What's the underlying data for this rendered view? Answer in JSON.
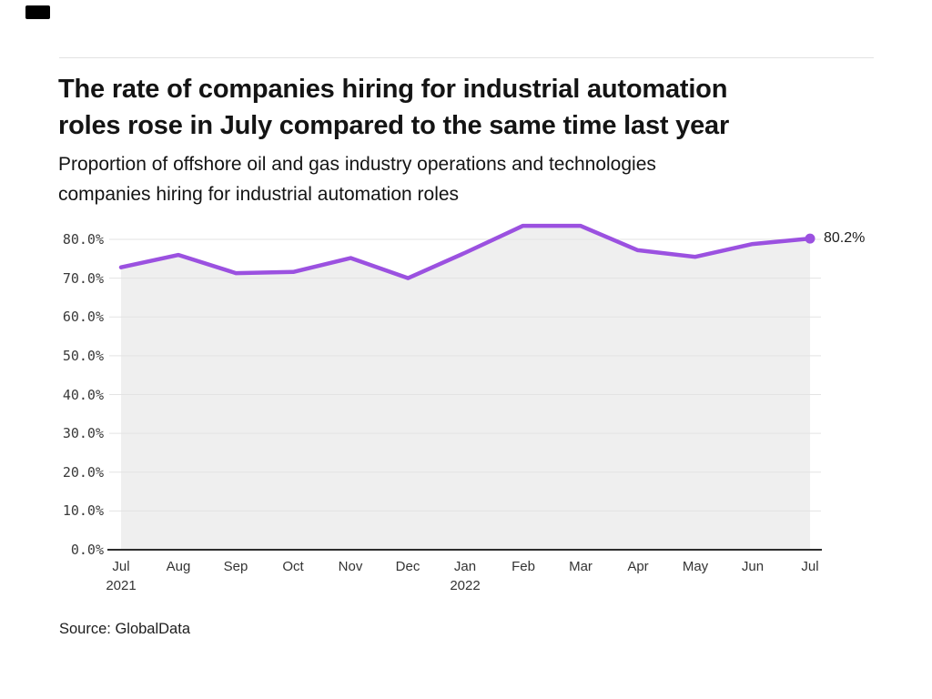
{
  "header": {
    "title_line1": "The rate of companies hiring for industrial automation",
    "title_line2": "roles rose in July compared to the same time last year",
    "subtitle_line1": "Proportion of offshore oil and gas industry operations and technologies",
    "subtitle_line2": "companies hiring for industrial automation roles"
  },
  "chart_data": {
    "type": "line",
    "title": "The rate of companies hiring for industrial automation roles rose in July compared to the same time last year",
    "subtitle": "Proportion of offshore oil and gas industry operations and technologies companies hiring for industrial automation roles",
    "x": [
      "Jul 2021",
      "Aug",
      "Sep",
      "Oct",
      "Nov",
      "Dec",
      "Jan 2022",
      "Feb",
      "Mar",
      "Apr",
      "May",
      "Jun",
      "Jul"
    ],
    "x_ticks": [
      {
        "label": "Jul",
        "sub": "2021"
      },
      {
        "label": "Aug"
      },
      {
        "label": "Sep"
      },
      {
        "label": "Oct"
      },
      {
        "label": "Nov"
      },
      {
        "label": "Dec"
      },
      {
        "label": "Jan",
        "sub": "2022"
      },
      {
        "label": "Feb"
      },
      {
        "label": "Mar"
      },
      {
        "label": "Apr"
      },
      {
        "label": "May"
      },
      {
        "label": "Jun"
      },
      {
        "label": "Jul"
      }
    ],
    "series": [
      {
        "name": "Proportion of companies hiring for industrial automation roles",
        "values": [
          72.8,
          76.0,
          71.3,
          71.6,
          75.2,
          70.0,
          76.6,
          83.5,
          83.5,
          77.2,
          75.5,
          78.8,
          80.2
        ]
      }
    ],
    "end_label": "80.2%",
    "y_ticks": [
      {
        "v": 0,
        "label": "0.0%"
      },
      {
        "v": 10,
        "label": "10.0%"
      },
      {
        "v": 20,
        "label": "20.0%"
      },
      {
        "v": 30,
        "label": "30.0%"
      },
      {
        "v": 40,
        "label": "40.0%"
      },
      {
        "v": 50,
        "label": "50.0%"
      },
      {
        "v": 60,
        "label": "60.0%"
      },
      {
        "v": 70,
        "label": "70.0%"
      },
      {
        "v": 80,
        "label": "80.0%"
      }
    ],
    "ylim": [
      0,
      88
    ],
    "grid": true,
    "legend_position": "none",
    "line_color": "#9b51e0",
    "area_color": "#efefef",
    "gridline_color": "#e3e3e3",
    "axis_color": "#2d2d2d"
  },
  "footer": {
    "source": "Source: GlobalData"
  }
}
